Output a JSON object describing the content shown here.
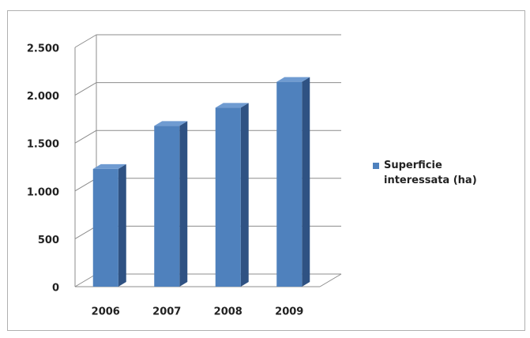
{
  "chart_data": {
    "type": "bar3d",
    "categories": [
      "2006",
      "2007",
      "2008",
      "2009"
    ],
    "series": [
      {
        "name": "Superficie interessata (ha)",
        "color": "#4f81bd",
        "values": [
          1230,
          1680,
          1870,
          2140
        ]
      }
    ],
    "ylim": [
      0,
      2500
    ],
    "yticks": [
      0,
      500,
      {
        "value": 1000,
        "label": "1.000"
      },
      {
        "value": 1500,
        "label": "1.500"
      },
      {
        "value": 2000,
        "label": "2.000"
      },
      {
        "value": 2500,
        "label": "2.500"
      }
    ],
    "grid": true,
    "legend": "right"
  }
}
